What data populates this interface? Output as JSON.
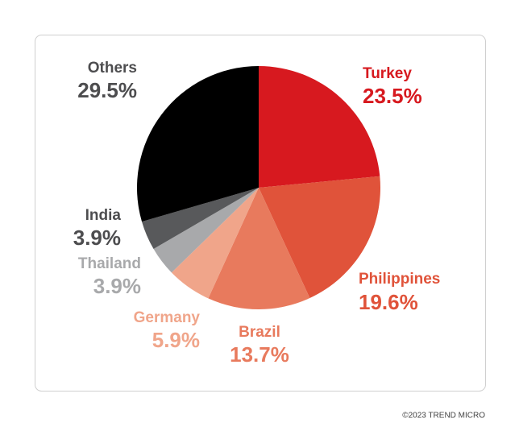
{
  "chart_data": {
    "type": "pie",
    "categories": [
      "Turkey",
      "Philippines",
      "Brazil",
      "Germany",
      "Thailand",
      "India",
      "Others"
    ],
    "values": [
      23.5,
      19.6,
      13.7,
      5.9,
      3.9,
      3.9,
      29.5
    ],
    "value_labels": [
      "23.5%",
      "19.6%",
      "13.7%",
      "5.9%",
      "3.9%",
      "3.9%",
      "29.5%"
    ],
    "colors": [
      "#d7191f",
      "#e0533a",
      "#e87a5d",
      "#f0a58a",
      "#a8a9ab",
      "#58595b",
      "#000000"
    ],
    "label_colors": [
      "#d7191f",
      "#e0533a",
      "#e87a5d",
      "#f0a58a",
      "#a8a9ab",
      "#4d4d4f",
      "#4d4d4f"
    ],
    "source": "©2023 TREND MICRO"
  }
}
